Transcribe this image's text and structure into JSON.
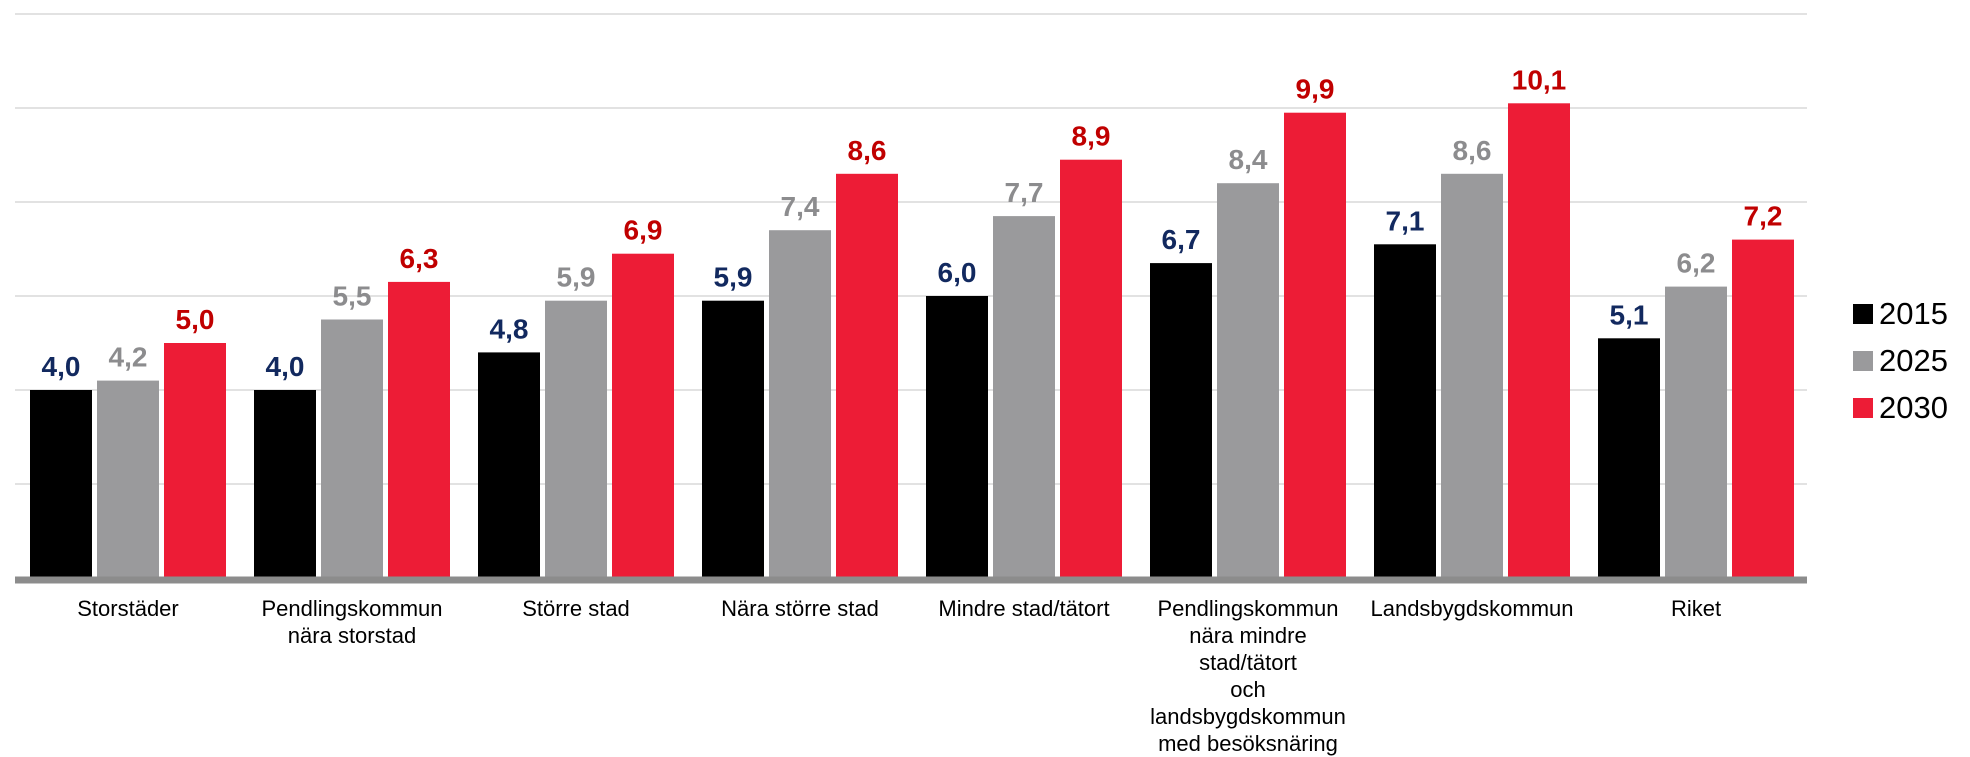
{
  "chart_data": {
    "type": "bar",
    "categories": [
      [
        "Storstäder"
      ],
      [
        "Pendlingskommun",
        "nära storstad"
      ],
      [
        "Större stad"
      ],
      [
        "Nära större stad"
      ],
      [
        "Mindre stad/tätort"
      ],
      [
        "Pendlingskommun",
        "nära mindre",
        "stad/tätort",
        "och",
        "landsbygdskommun",
        "med besöksnäring"
      ],
      [
        "Landsbygdskommun"
      ],
      [
        "Riket"
      ]
    ],
    "series": [
      {
        "name": "2015",
        "color": "#000000",
        "label_color": "#12295f",
        "values": [
          4.0,
          4.0,
          4.8,
          5.9,
          6.0,
          6.7,
          7.1,
          5.1
        ],
        "labels": [
          "4,0",
          "4,0",
          "4,8",
          "5,9",
          "6,0",
          "6,7",
          "7,1",
          "5,1"
        ]
      },
      {
        "name": "2025",
        "color": "#9a9a9c",
        "label_color": "#8c8c8e",
        "values": [
          4.2,
          5.5,
          5.9,
          7.4,
          7.7,
          8.4,
          8.6,
          6.2
        ],
        "labels": [
          "4,2",
          "5,5",
          "5,9",
          "7,4",
          "7,7",
          "8,4",
          "8,6",
          "6,2"
        ]
      },
      {
        "name": "2030",
        "color": "#ed1c36",
        "label_color": "#c00000",
        "values": [
          5.0,
          6.3,
          6.9,
          8.6,
          8.9,
          9.9,
          10.1,
          7.2
        ],
        "labels": [
          "5,0",
          "6,3",
          "6,9",
          "8,6",
          "8,9",
          "9,9",
          "10,1",
          "7,2"
        ]
      }
    ],
    "ylim": [
      0,
      12
    ],
    "grid": true,
    "legend_position": "right",
    "axis_color": "#8c8c8c",
    "grid_color": "#d9d9d9"
  }
}
